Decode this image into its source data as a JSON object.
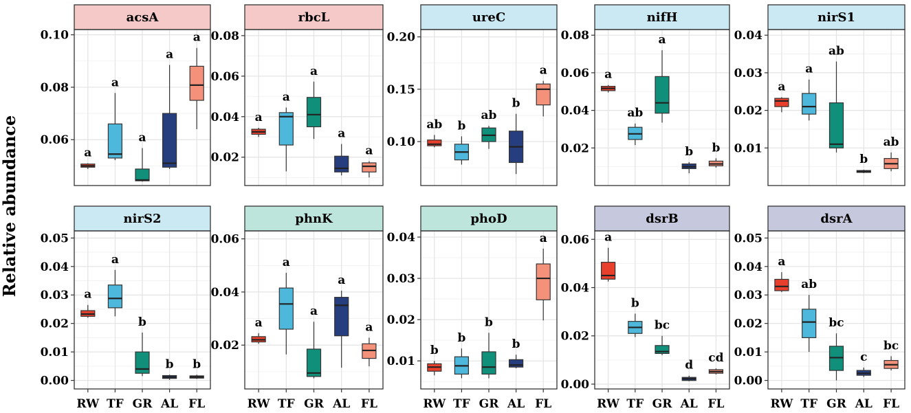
{
  "figure": {
    "y_axis_title": "Relative abundance"
  },
  "chart_data": [
    {
      "type": "box",
      "title": "acsA",
      "strip_color": "#f4c9c7",
      "categories": [
        "RW",
        "TF",
        "GR",
        "AL",
        "FL"
      ],
      "yticks": [
        0.06,
        0.08,
        0.1
      ],
      "ytick_labels": [
        "0.06",
        "0.08",
        "0.10"
      ],
      "ylim": [
        0.0425,
        0.102
      ],
      "boxes": [
        {
          "category": "RW",
          "min": 0.0488,
          "q1": 0.0495,
          "median": 0.05,
          "q3": 0.0507,
          "max": 0.051,
          "color": "#e8402c",
          "letters": "a"
        },
        {
          "category": "TF",
          "min": 0.0522,
          "q1": 0.053,
          "median": 0.0545,
          "q3": 0.066,
          "max": 0.0778,
          "color": "#4db8dc",
          "letters": "a"
        },
        {
          "category": "GR",
          "min": 0.044,
          "q1": 0.0443,
          "median": 0.0446,
          "q3": 0.0488,
          "max": 0.0568,
          "color": "#10907a",
          "letters": "a"
        },
        {
          "category": "AL",
          "min": 0.0488,
          "q1": 0.0495,
          "median": 0.051,
          "q3": 0.07,
          "max": 0.0885,
          "color": "#263d7e",
          "letters": "a"
        },
        {
          "category": "FL",
          "min": 0.064,
          "q1": 0.075,
          "median": 0.0808,
          "q3": 0.088,
          "max": 0.095,
          "color": "#f4917a",
          "letters": "a"
        }
      ]
    },
    {
      "type": "box",
      "title": "rbcL",
      "strip_color": "#f4c9c7",
      "categories": [
        "RW",
        "TF",
        "GR",
        "AL",
        "FL"
      ],
      "yticks": [
        0.02,
        0.04,
        0.06,
        0.08
      ],
      "ytick_labels": [
        "0.02",
        "0.04",
        "0.06",
        "0.08"
      ],
      "ylim": [
        0.006,
        0.083
      ],
      "boxes": [
        {
          "category": "RW",
          "min": 0.03,
          "q1": 0.0313,
          "median": 0.0325,
          "q3": 0.0338,
          "max": 0.0345,
          "color": "#e8402c",
          "letters": "a"
        },
        {
          "category": "TF",
          "min": 0.013,
          "q1": 0.026,
          "median": 0.04,
          "q3": 0.042,
          "max": 0.0445,
          "color": "#4db8dc",
          "letters": "a"
        },
        {
          "category": "GR",
          "min": 0.029,
          "q1": 0.035,
          "median": 0.041,
          "q3": 0.0495,
          "max": 0.0573,
          "color": "#10907a",
          "letters": "a"
        },
        {
          "category": "AL",
          "min": 0.011,
          "q1": 0.0127,
          "median": 0.0145,
          "q3": 0.0205,
          "max": 0.0265,
          "color": "#263d7e",
          "letters": "a"
        },
        {
          "category": "FL",
          "min": 0.01,
          "q1": 0.0127,
          "median": 0.0155,
          "q3": 0.0172,
          "max": 0.018,
          "color": "#f4917a",
          "letters": "a"
        }
      ]
    },
    {
      "type": "box",
      "title": "ureC",
      "strip_color": "#cbe9f3",
      "categories": [
        "RW",
        "TF",
        "GR",
        "AL",
        "FL"
      ],
      "yticks": [
        0.1,
        0.15,
        0.2
      ],
      "ytick_labels": [
        "0.10",
        "0.15",
        "0.20"
      ],
      "ylim": [
        0.058,
        0.207
      ],
      "boxes": [
        {
          "category": "RW",
          "min": 0.0945,
          "q1": 0.096,
          "median": 0.0975,
          "q3": 0.1015,
          "max": 0.1063,
          "color": "#e8402c",
          "letters": "ab"
        },
        {
          "category": "TF",
          "min": 0.078,
          "q1": 0.0825,
          "median": 0.09,
          "q3": 0.0975,
          "max": 0.105,
          "color": "#4db8dc",
          "letters": "b"
        },
        {
          "category": "GR",
          "min": 0.093,
          "q1": 0.1,
          "median": 0.106,
          "q3": 0.113,
          "max": 0.115,
          "color": "#10907a",
          "letters": "ab"
        },
        {
          "category": "AL",
          "min": 0.069,
          "q1": 0.08,
          "median": 0.095,
          "q3": 0.11,
          "max": 0.1265,
          "color": "#263d7e",
          "letters": "b"
        },
        {
          "category": "FL",
          "min": 0.124,
          "q1": 0.135,
          "median": 0.15,
          "q3": 0.155,
          "max": 0.158,
          "color": "#f4917a",
          "letters": "a"
        }
      ]
    },
    {
      "type": "box",
      "title": "nifH",
      "strip_color": "#cbe9f3",
      "categories": [
        "RW",
        "TF",
        "GR",
        "AL",
        "FL"
      ],
      "yticks": [
        0.02,
        0.04,
        0.06,
        0.08
      ],
      "ytick_labels": [
        "0.02",
        "0.04",
        "0.06",
        "0.08"
      ],
      "ylim": [
        0.0,
        0.083
      ],
      "boxes": [
        {
          "category": "RW",
          "min": 0.0495,
          "q1": 0.0505,
          "median": 0.0517,
          "q3": 0.0528,
          "max": 0.0535,
          "color": "#e8402c",
          "letters": "a"
        },
        {
          "category": "TF",
          "min": 0.0215,
          "q1": 0.0245,
          "median": 0.0275,
          "q3": 0.031,
          "max": 0.033,
          "color": "#4db8dc",
          "letters": "ab"
        },
        {
          "category": "GR",
          "min": 0.0335,
          "q1": 0.0385,
          "median": 0.044,
          "q3": 0.058,
          "max": 0.072,
          "color": "#10907a",
          "letters": "a"
        },
        {
          "category": "AL",
          "min": 0.0065,
          "q1": 0.009,
          "median": 0.01,
          "q3": 0.0115,
          "max": 0.0125,
          "color": "#263d7e",
          "letters": "b"
        },
        {
          "category": "FL",
          "min": 0.0095,
          "q1": 0.0105,
          "median": 0.0115,
          "q3": 0.013,
          "max": 0.0145,
          "color": "#f4917a",
          "letters": "b"
        }
      ]
    },
    {
      "type": "box",
      "title": "nirS1",
      "strip_color": "#cbe9f3",
      "categories": [
        "RW",
        "TF",
        "GR",
        "AL",
        "FL"
      ],
      "yticks": [
        0.01,
        0.02,
        0.03,
        0.04
      ],
      "ytick_labels": [
        "0.01",
        "0.02",
        "0.03",
        "0.04"
      ],
      "ylim": [
        0.0,
        0.0415
      ],
      "boxes": [
        {
          "category": "RW",
          "min": 0.0195,
          "q1": 0.021,
          "median": 0.0225,
          "q3": 0.0232,
          "max": 0.0235,
          "color": "#e8402c",
          "letters": "a"
        },
        {
          "category": "TF",
          "min": 0.0173,
          "q1": 0.019,
          "median": 0.021,
          "q3": 0.0245,
          "max": 0.0282,
          "color": "#4db8dc",
          "letters": "a"
        },
        {
          "category": "GR",
          "min": 0.0088,
          "q1": 0.01,
          "median": 0.011,
          "q3": 0.022,
          "max": 0.033,
          "color": "#10907a",
          "letters": "ab"
        },
        {
          "category": "AL",
          "min": 0.0033,
          "q1": 0.0035,
          "median": 0.0037,
          "q3": 0.004,
          "max": 0.0042,
          "color": "#263d7e",
          "letters": "b"
        },
        {
          "category": "FL",
          "min": 0.0038,
          "q1": 0.0045,
          "median": 0.0058,
          "q3": 0.0072,
          "max": 0.0088,
          "color": "#f4917a",
          "letters": "ab"
        }
      ]
    },
    {
      "type": "box",
      "title": "nirS2",
      "strip_color": "#cbe9f3",
      "categories": [
        "RW",
        "TF",
        "GR",
        "AL",
        "FL"
      ],
      "yticks": [
        0.0,
        0.01,
        0.02,
        0.03,
        0.04,
        0.05
      ],
      "ytick_labels": [
        "0.00",
        "0.01",
        "0.02",
        "0.03",
        "0.04",
        "0.05"
      ],
      "ylim": [
        -0.003,
        0.0525
      ],
      "boxes": [
        {
          "category": "RW",
          "min": 0.022,
          "q1": 0.0225,
          "median": 0.0233,
          "q3": 0.0245,
          "max": 0.0265,
          "color": "#e8402c",
          "letters": "a"
        },
        {
          "category": "TF",
          "min": 0.0225,
          "q1": 0.0255,
          "median": 0.0288,
          "q3": 0.0335,
          "max": 0.0388,
          "color": "#4db8dc",
          "letters": "a"
        },
        {
          "category": "GR",
          "min": 0.0015,
          "q1": 0.0025,
          "median": 0.004,
          "q3": 0.01,
          "max": 0.0168,
          "color": "#10907a",
          "letters": "b"
        },
        {
          "category": "AL",
          "min": 0.0002,
          "q1": 0.0007,
          "median": 0.0012,
          "q3": 0.0017,
          "max": 0.002,
          "color": "#263d7e",
          "letters": "b"
        },
        {
          "category": "FL",
          "min": 0.0005,
          "q1": 0.0008,
          "median": 0.0012,
          "q3": 0.0016,
          "max": 0.002,
          "color": "#f4917a",
          "letters": "b"
        }
      ]
    },
    {
      "type": "box",
      "title": "phnK",
      "strip_color": "#bde5dc",
      "categories": [
        "RW",
        "TF",
        "GR",
        "AL",
        "FL"
      ],
      "yticks": [
        0.02,
        0.04,
        0.06
      ],
      "ytick_labels": [
        "0.02",
        "0.04",
        "0.06"
      ],
      "ylim": [
        0.0035,
        0.063
      ],
      "boxes": [
        {
          "category": "RW",
          "min": 0.0205,
          "q1": 0.0212,
          "median": 0.022,
          "q3": 0.0232,
          "max": 0.0245,
          "color": "#e8402c",
          "letters": "a"
        },
        {
          "category": "TF",
          "min": 0.0165,
          "q1": 0.026,
          "median": 0.0355,
          "q3": 0.0415,
          "max": 0.0472,
          "color": "#4db8dc",
          "letters": "a"
        },
        {
          "category": "GR",
          "min": 0.0075,
          "q1": 0.0082,
          "median": 0.0095,
          "q3": 0.0185,
          "max": 0.0288,
          "color": "#10907a",
          "letters": "a"
        },
        {
          "category": "AL",
          "min": 0.0115,
          "q1": 0.0235,
          "median": 0.035,
          "q3": 0.038,
          "max": 0.0405,
          "color": "#263d7e",
          "letters": "a"
        },
        {
          "category": "FL",
          "min": 0.012,
          "q1": 0.015,
          "median": 0.018,
          "q3": 0.0205,
          "max": 0.0228,
          "color": "#f4917a",
          "letters": "a"
        }
      ]
    },
    {
      "type": "box",
      "title": "phoD",
      "strip_color": "#bde5dc",
      "categories": [
        "RW",
        "TF",
        "GR",
        "AL",
        "FL"
      ],
      "yticks": [
        0.01,
        0.02,
        0.03,
        0.04
      ],
      "ytick_labels": [
        "0.01",
        "0.02",
        "0.03",
        "0.04"
      ],
      "ylim": [
        0.0032,
        0.0415
      ],
      "boxes": [
        {
          "category": "RW",
          "min": 0.0065,
          "q1": 0.0075,
          "median": 0.0085,
          "q3": 0.0093,
          "max": 0.01,
          "color": "#e8402c",
          "letters": "b"
        },
        {
          "category": "TF",
          "min": 0.0058,
          "q1": 0.0068,
          "median": 0.0088,
          "q3": 0.011,
          "max": 0.013,
          "color": "#4db8dc",
          "letters": "b"
        },
        {
          "category": "GR",
          "min": 0.0058,
          "q1": 0.0068,
          "median": 0.0085,
          "q3": 0.0122,
          "max": 0.0168,
          "color": "#10907a",
          "letters": "b"
        },
        {
          "category": "AL",
          "min": 0.0082,
          "q1": 0.0085,
          "median": 0.009,
          "q3": 0.0103,
          "max": 0.0115,
          "color": "#263d7e",
          "letters": "b"
        },
        {
          "category": "FL",
          "min": 0.0198,
          "q1": 0.0248,
          "median": 0.03,
          "q3": 0.0335,
          "max": 0.0372,
          "color": "#f4917a",
          "letters": "a"
        }
      ]
    },
    {
      "type": "box",
      "title": "dsrB",
      "strip_color": "#c6c8dd",
      "categories": [
        "RW",
        "TF",
        "GR",
        "AL",
        "FL"
      ],
      "yticks": [
        0.0,
        0.02,
        0.04,
        0.06
      ],
      "ytick_labels": [
        "0.00",
        "0.02",
        "0.04",
        "0.06"
      ],
      "ylim": [
        -0.002,
        0.0635
      ],
      "boxes": [
        {
          "category": "RW",
          "min": 0.0425,
          "q1": 0.0435,
          "median": 0.045,
          "q3": 0.0505,
          "max": 0.0565,
          "color": "#e8402c",
          "letters": "a"
        },
        {
          "category": "TF",
          "min": 0.0195,
          "q1": 0.021,
          "median": 0.0235,
          "q3": 0.026,
          "max": 0.0292,
          "color": "#4db8dc",
          "letters": "b"
        },
        {
          "category": "GR",
          "min": 0.012,
          "q1": 0.0127,
          "median": 0.0135,
          "q3": 0.016,
          "max": 0.02,
          "color": "#10907a",
          "letters": "bc"
        },
        {
          "category": "AL",
          "min": 0.0012,
          "q1": 0.0015,
          "median": 0.0022,
          "q3": 0.0028,
          "max": 0.0035,
          "color": "#263d7e",
          "letters": "d"
        },
        {
          "category": "FL",
          "min": 0.004,
          "q1": 0.0045,
          "median": 0.0052,
          "q3": 0.006,
          "max": 0.0065,
          "color": "#f4917a",
          "letters": "cd"
        }
      ]
    },
    {
      "type": "box",
      "title": "dsrA",
      "strip_color": "#c6c8dd",
      "categories": [
        "RW",
        "TF",
        "GR",
        "AL",
        "FL"
      ],
      "yticks": [
        0.0,
        0.01,
        0.02,
        0.03,
        0.04,
        0.05
      ],
      "ytick_labels": [
        "0.00",
        "0.01",
        "0.02",
        "0.03",
        "0.04",
        "0.05"
      ],
      "ylim": [
        -0.003,
        0.0525
      ],
      "boxes": [
        {
          "category": "RW",
          "min": 0.031,
          "q1": 0.0315,
          "median": 0.033,
          "q3": 0.0355,
          "max": 0.038,
          "color": "#e8402c",
          "letters": "a"
        },
        {
          "category": "TF",
          "min": 0.01,
          "q1": 0.015,
          "median": 0.0205,
          "q3": 0.025,
          "max": 0.03,
          "color": "#4db8dc",
          "letters": "ab"
        },
        {
          "category": "GR",
          "min": 0.0,
          "q1": 0.0035,
          "median": 0.008,
          "q3": 0.012,
          "max": 0.0165,
          "color": "#10907a",
          "letters": "bc"
        },
        {
          "category": "AL",
          "min": 0.0012,
          "q1": 0.0018,
          "median": 0.0025,
          "q3": 0.0035,
          "max": 0.0045,
          "color": "#263d7e",
          "letters": "c"
        },
        {
          "category": "FL",
          "min": 0.0035,
          "q1": 0.0042,
          "median": 0.0055,
          "q3": 0.007,
          "max": 0.0085,
          "color": "#f4917a",
          "letters": "bc"
        }
      ]
    }
  ]
}
